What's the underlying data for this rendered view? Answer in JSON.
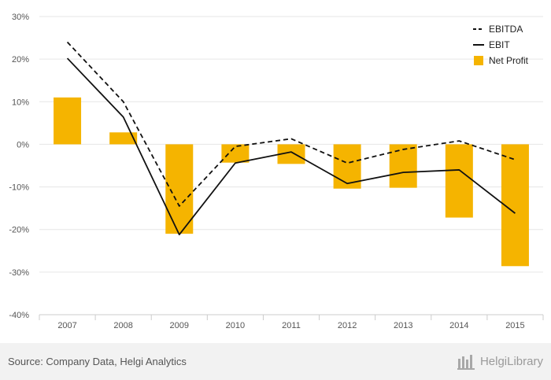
{
  "chart_data": {
    "type": "bar",
    "categories": [
      "2007",
      "2008",
      "2009",
      "2010",
      "2011",
      "2012",
      "2013",
      "2014",
      "2015"
    ],
    "ylim": [
      -40,
      30
    ],
    "yticks": [
      "30%",
      "20%",
      "10%",
      "0%",
      "-10%",
      "-20%",
      "-30%",
      "-40%"
    ],
    "ytick_values": [
      30,
      20,
      10,
      0,
      -10,
      -20,
      -30,
      -40
    ],
    "series": [
      {
        "name": "Net Profit",
        "kind": "bar",
        "color": "#f5b400",
        "values": [
          11.0,
          2.8,
          -21.0,
          -4.3,
          -4.6,
          -10.4,
          -10.2,
          -17.2,
          -28.6
        ]
      },
      {
        "name": "EBITDA",
        "kind": "line",
        "style": "dashed",
        "color": "#111111",
        "values": [
          24.0,
          10.0,
          -14.5,
          -0.5,
          1.3,
          -4.4,
          -1.2,
          0.8,
          -3.6
        ]
      },
      {
        "name": "EBIT",
        "kind": "line",
        "style": "solid",
        "color": "#111111",
        "values": [
          20.2,
          6.4,
          -21.2,
          -4.4,
          -1.8,
          -9.2,
          -6.6,
          -6.0,
          -16.2
        ]
      }
    ],
    "grid": true,
    "legend_position": "top-right",
    "legend": [
      "EBITDA",
      "EBIT",
      "Net Profit"
    ]
  },
  "footer": {
    "source": "Source: Company Data, Helgi Analytics",
    "brand": "HelgiLibrary"
  },
  "colors": {
    "bar": "#f5b400",
    "line": "#111111",
    "grid": "#e6e6e6",
    "footer_bg": "#f2f2f2"
  }
}
